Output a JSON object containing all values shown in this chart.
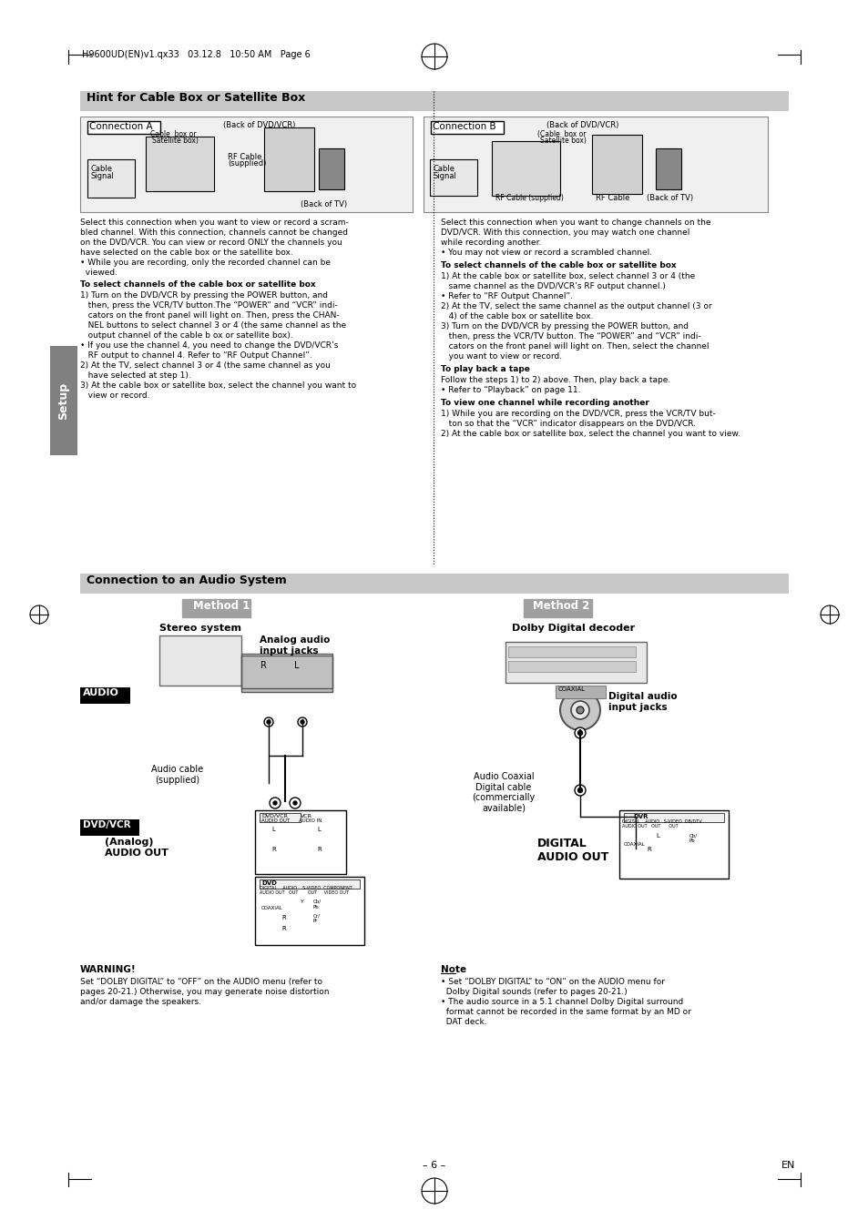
{
  "page_bg": "#ffffff",
  "margin_color": "#000000",
  "header_text": "H9600UD(EN)v1.qx33   03.12.8   10:50 AM   Page 6",
  "section1_title": "Hint for Cable Box or Satellite Box",
  "section1_bg": "#c8c8c8",
  "section2_title": "Connection to an Audio System",
  "section2_bg": "#c8c8c8",
  "setup_label": "Setup",
  "setup_bg": "#808080",
  "conn_a_title": "Connection A",
  "conn_b_title": "Connection B",
  "method1_title": "Method 1",
  "method2_title": "Method 2",
  "method_bg": "#a0a0a0",
  "stereo_label": "Stereo system",
  "dolby_label": "Dolby Digital decoder",
  "analog_audio_label": "Analog audio\ninput jacks",
  "digital_audio_label": "Digital audio\ninput jacks",
  "audio_label": "AUDIO",
  "audio_bg": "#000000",
  "audio_fg": "#ffffff",
  "dvdvcr_label": "DVD/VCR",
  "dvdvcr_bg": "#000000",
  "dvdvcr_fg": "#ffffff",
  "analog_out_label": "(Analog)\nAUDIO OUT",
  "digital_out_label": "DIGITAL\nAUDIO OUT",
  "audio_cable_label": "Audio cable\n(supplied)",
  "digital_cable_label": "Audio Coaxial\nDigital cable\n(commercially\navailable)",
  "warning_title": "WARNING!",
  "warning_text": "Set “DOLBY DIGITAL” to “OFF” on the AUDIO menu (refer to\npages 20-21.) Otherwise, you may generate noise distortion\nand/or damage the speakers.",
  "note_title": "Note",
  "note_text": "• Set “DOLBY DIGITAL” to “ON” on the AUDIO menu for\n  Dolby Digital sounds (refer to pages 20-21.)\n• The audio source in a 5.1 channel Dolby Digital surround\n  format cannot be recorded in the same format by an MD or\n  DAT deck.",
  "page_number": "– 6 –",
  "page_en": "EN",
  "conn_a_text": "Select this connection when you want to view or record a scram-\nbled channel. With this connection, channels cannot be changed\non the DVD/VCR. You can view or record ONLY the channels you\nhave selected on the cable box or the satellite box.\n• While you are recording, only the recorded channel can be\n  viewed.\n\nTo select channels of the cable box or satellite box\n1) Turn on the DVD/VCR by pressing the POWER button, and\n   then, press the VCR/TV button.The “POWER” and “VCR” indi-\n   cators on the front panel will light on. Then, press the CHAN-\n   NEL buttons to select channel 3 or 4 (the same channel as the\n   output channel of the cable b ox or satellite box).\n• If you use the channel 4, you need to change the DVD/VCR’s\n   RF output to channel 4. Refer to “RF Output Channel”.\n2) At the TV, select channel 3 or 4 (the same channel as you\n   have selected at step 1).\n3) At the cable box or satellite box, select the channel you want to\n   view or record.",
  "conn_b_text": "Select this connection when you want to change channels on the\nDVD/VCR. With this connection, you may watch one channel\nwhile recording another.\n• You may not view or record a scrambled channel.\n\nTo select channels of the cable box or satellite box\n1) At the cable box or satellite box, select channel 3 or 4 (the\n   same channel as the DVD/VCR’s RF output channel.)\n• Refer to “RF Output Channel”.\n2) At the TV, select the same channel as the output channel (3 or\n   4) of the cable box or satellite box.\n3) Turn on the DVD/VCR by pressing the POWER button, and\n   then, press the VCR/TV button. The “POWER” and “VCR” indi-\n   cators on the front panel will light on. Then, select the channel\n   you want to view or record.\n\nTo play back a tape\nFollow the steps 1) to 2) above. Then, play back a tape.\n• Refer to “Playback” on page 11.\n\nTo view one channel while recording another\n1) While you are recording on the DVD/VCR, press the VCR/TV but-\n   ton so that the “VCR” indicator disappears on the DVD/VCR.\n2) At the cable box or satellite box, select the channel you want to view."
}
